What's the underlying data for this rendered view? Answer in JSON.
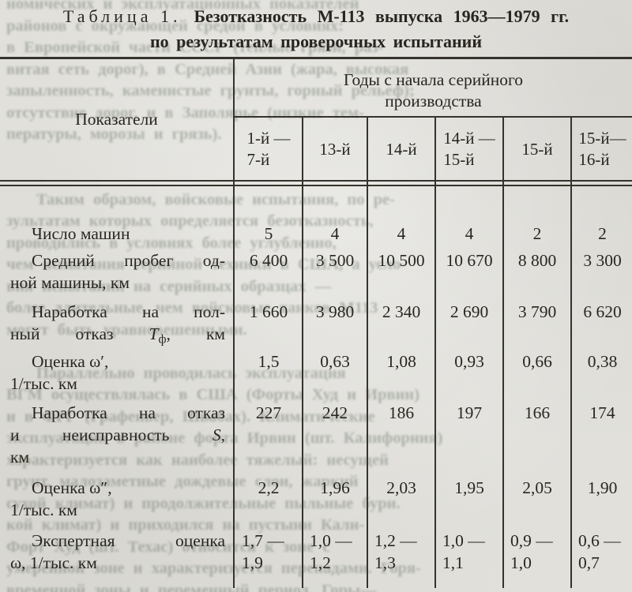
{
  "caption": {
    "number": "Таблица 1.",
    "title_line1": "Безотказность  М-113  выпуска  1963—1979 гг.",
    "title_line2": "по результатам проверочных испытаний"
  },
  "table": {
    "header": {
      "left": "Показатели",
      "years_line1": "Годы с начала серийного",
      "years_line2": "производства",
      "cols": [
        "1-й —\n7-й",
        "13-й",
        "14-й",
        "14-й —\n15-й",
        "15-й",
        "15-й—\n16-й"
      ]
    },
    "rows": [
      {
        "label": "Число машин",
        "values": [
          "5",
          "4",
          "4",
          "4",
          "2",
          "2"
        ]
      },
      {
        "label_l1": "Средний пробег од-",
        "label_l2": "ной машины, км",
        "values": [
          "6 400",
          "3 500",
          "10 500",
          "10 670",
          "8 800",
          "3 300"
        ]
      },
      {
        "label_l1": "Наработка на пол-",
        "label_l2a": "ный отказ",
        "sym": "Т",
        "sym_sub": "ф",
        "label_l2b": ", км",
        "values": [
          "1 660",
          "3 980",
          "2 340",
          "2 690",
          "3 790",
          "6 620"
        ]
      },
      {
        "label_l1": "Оценка ω′,",
        "label_l2": "1/тыс. км",
        "values": [
          "1,5",
          "0,63",
          "1,08",
          "0,93",
          "0,66",
          "0,38"
        ]
      },
      {
        "label_l1": "Наработка на отказ",
        "label_l2a": "и неисправность",
        "sym": "S",
        "label_l2b": ",",
        "label_l3": "км",
        "values": [
          "227",
          "242",
          "186",
          "197",
          "166",
          "174"
        ]
      },
      {
        "label_l1": "Оценка ω″,",
        "label_l2": "1/тыс. км",
        "values": [
          "2,2",
          "1,96",
          "2,03",
          "1,95",
          "2,05",
          "1,90"
        ]
      },
      {
        "label_l1": "Экспертная оценка",
        "label_l2": "ω, 1/тыс. км",
        "values": [
          "1,7 —\n1,9",
          "1,0 —\n1,2",
          "1,2 —\n1,3",
          "1,0 —\n1,1",
          "0,9 —\n1,0",
          "0,6 —\n0,7"
        ]
      }
    ]
  },
  "ghost": {
    "lines": [
      "номических и эксплуатационных показателей",
      "районов с окружающей средой в условиях:",
      "в Европейской части СССР (теплые грязи, раз-",
      "витая сеть дорог), в Средней Азии (жара, высокая",
      "запыленность, каменистые грунты, горный рельеф);",
      "отсутствие дорог, и в Заполярье (низкие тем-",
      "пературы, морозы и грязь).",
      "",
      "",
      "Таким образом, войсковые испытания, по ре-",
      "зультатам которых определяется безотказность,",
      "проводились в условиях более углубленно,",
      "чем испытания серийной техники в США, а усло-",
      "вия испытаний на серийных образцах —",
      "более длительные, чем войсковые танков М113",
      "могут быть уравновешенными.",
      "",
      "Параллельно проводилась эксплуатация",
      "ВГМ осуществлялась в США (Форты Худ и Ирвин)",
      "и в ФРГ (Графенвер, Швабах). Климатические",
      "эксплуатации в районе форта Ирвин (шт. Калифорния)",
      "характеризуется как наиболее тяжелый: несущей",
      "грунт, малозаметные дождевые слои, жаркий",
      "сухой климат) и продолжительные пыльные бури.",
      "кой климат) и приходился на пустыни Кали-",
      "Форт Худ (шт. Техас) относится к зоне с",
      "умеренной зоне и характеризуется перепадами. Горя-",
      "временной зоны и переменный период. Горы—"
    ]
  }
}
